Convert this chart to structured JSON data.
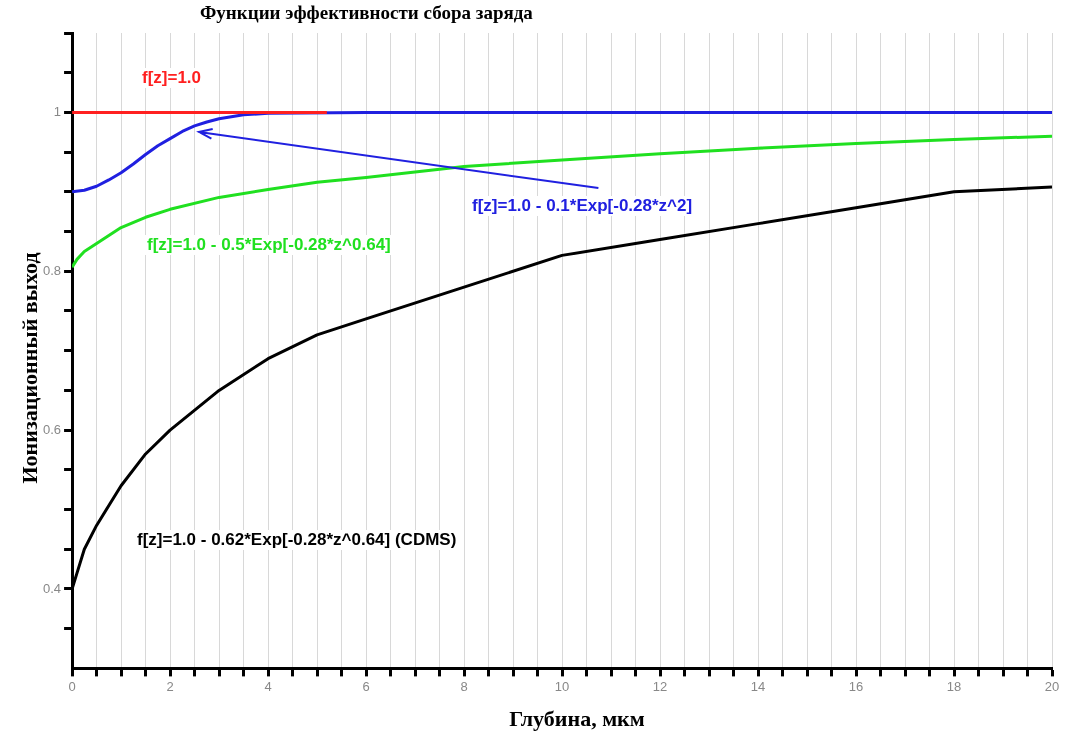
{
  "chart_data": {
    "type": "line",
    "title": "Функции эффективности сбора заряда",
    "xlabel": "Глубина, мкм",
    "ylabel": "Ионизационный выход",
    "xlim": [
      0,
      20
    ],
    "ylim": [
      0.3,
      1.1
    ],
    "xticks": [
      0,
      {
        "value": 0.5,
        "label": null
      },
      2,
      {
        "value": 1,
        "label": null
      },
      {
        "value": 1.5,
        "label": null
      },
      {
        "value": 2.5,
        "label": null
      },
      {
        "value": 3,
        "label": null
      },
      {
        "value": 3.5,
        "label": null
      },
      4,
      {
        "value": 4.5,
        "label": null
      },
      {
        "value": 5,
        "label": null
      },
      {
        "value": 5.5,
        "label": null
      },
      6,
      {
        "value": 6.5,
        "label": null
      },
      {
        "value": 7,
        "label": null
      },
      {
        "value": 7.5,
        "label": null
      },
      8,
      {
        "value": 8.5,
        "label": null
      },
      {
        "value": 9,
        "label": null
      },
      {
        "value": 9.5,
        "label": null
      },
      10,
      {
        "value": 10.5,
        "label": null
      },
      {
        "value": 11,
        "label": null
      },
      {
        "value": 11.5,
        "label": null
      },
      12,
      {
        "value": 12.5,
        "label": null
      },
      {
        "value": 13,
        "label": null
      },
      {
        "value": 13.5,
        "label": null
      },
      14,
      {
        "value": 14.5,
        "label": null
      },
      {
        "value": 15,
        "label": null
      },
      {
        "value": 15.5,
        "label": null
      },
      16,
      {
        "value": 16.5,
        "label": null
      },
      {
        "value": 17,
        "label": null
      },
      {
        "value": 17.5,
        "label": null
      },
      18,
      {
        "value": 18.5,
        "label": null
      },
      {
        "value": 19,
        "label": null
      },
      {
        "value": 19.5,
        "label": null
      },
      20
    ],
    "yticks": [
      {
        "value": 0.35,
        "label": null
      },
      0.4,
      {
        "value": 0.45,
        "label": null
      },
      {
        "value": 0.5,
        "label": null
      },
      {
        "value": 0.55,
        "label": null
      },
      0.6,
      {
        "value": 0.65,
        "label": null
      },
      {
        "value": 0.7,
        "label": null
      },
      {
        "value": 0.75,
        "label": null
      },
      0.8,
      {
        "value": 0.85,
        "label": null
      },
      {
        "value": 0.9,
        "label": null
      },
      {
        "value": 0.95,
        "label": null
      },
      1,
      {
        "value": 1.05,
        "label": null
      },
      {
        "value": 1.1,
        "label": null
      }
    ],
    "grid": "x",
    "marker": "none",
    "line_style": "solid",
    "series": [
      {
        "name": "f[z]=1.0",
        "color": "#ff2020",
        "x": [
          0,
          5.2
        ],
        "values": [
          1.0,
          1.0
        ]
      },
      {
        "name": "f[z]=1.0 - 0.1*Exp[-0.28*z^2]",
        "color": "#2020e0",
        "x": [
          0,
          0.25,
          0.5,
          0.75,
          1,
          1.25,
          1.5,
          1.75,
          2,
          2.25,
          2.5,
          2.75,
          3,
          3.5,
          4,
          6,
          8,
          10,
          12,
          14,
          16,
          18,
          20
        ],
        "values": [
          0.9,
          0.902,
          0.907,
          0.915,
          0.924,
          0.935,
          0.947,
          0.958,
          0.967,
          0.976,
          0.983,
          0.988,
          0.992,
          0.997,
          0.999,
          1.0,
          1.0,
          1.0,
          1.0,
          1.0,
          1.0,
          1.0,
          1.0
        ]
      },
      {
        "name": "f[z]=1.0 - 0.5*Exp[-0.28*z^0.64]",
        "color": "#20e020",
        "x": [
          0,
          0.1,
          0.25,
          0.5,
          1,
          1.5,
          2,
          3,
          4,
          5,
          6,
          8,
          10,
          12,
          14,
          16,
          18,
          20
        ],
        "values": [
          0.805,
          0.815,
          0.825,
          0.835,
          0.855,
          0.868,
          0.878,
          0.893,
          0.903,
          0.912,
          0.918,
          0.932,
          0.94,
          0.948,
          0.955,
          0.961,
          0.966,
          0.97
        ]
      },
      {
        "name": "f[z]=1.0 - 0.62*Exp[-0.28*z^0.64] (CDMS)",
        "color": "#000000",
        "x": [
          0,
          0.1,
          0.25,
          0.5,
          1,
          1.5,
          2,
          3,
          4,
          5,
          6,
          8,
          10,
          12,
          14,
          16,
          18,
          20
        ],
        "values": [
          0.4,
          0.42,
          0.45,
          0.48,
          0.53,
          0.57,
          0.6,
          0.65,
          0.69,
          0.72,
          0.74,
          0.78,
          0.82,
          0.84,
          0.86,
          0.88,
          0.9,
          0.906
        ]
      }
    ]
  }
}
